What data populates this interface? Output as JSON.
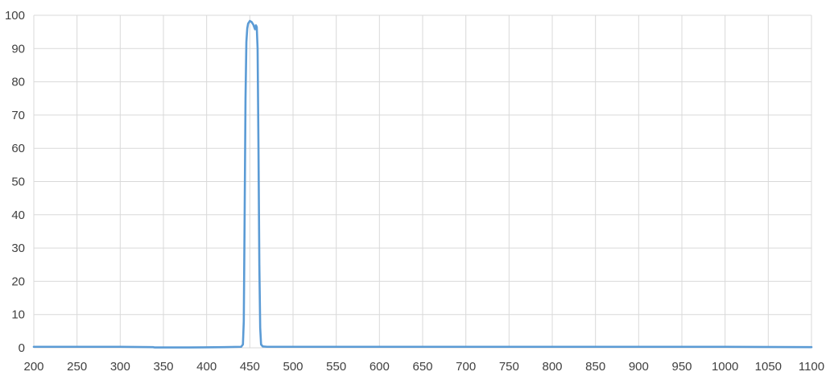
{
  "chart_data": {
    "type": "line",
    "title": "",
    "xlabel": "",
    "ylabel": "",
    "xlim": [
      200,
      1100
    ],
    "ylim": [
      0,
      100
    ],
    "x_ticks": [
      200,
      250,
      300,
      350,
      400,
      450,
      500,
      550,
      600,
      650,
      700,
      750,
      800,
      850,
      900,
      950,
      1000,
      1050,
      1100
    ],
    "y_ticks": [
      0,
      10,
      20,
      30,
      40,
      50,
      60,
      70,
      80,
      90,
      100
    ],
    "grid": true,
    "legend": "none",
    "series": [
      {
        "color": "#5b9bd5",
        "points": [
          [
            200,
            0.3
          ],
          [
            250,
            0.3
          ],
          [
            300,
            0.3
          ],
          [
            338,
            0.2
          ],
          [
            340,
            0.1
          ],
          [
            380,
            0.1
          ],
          [
            420,
            0.2
          ],
          [
            440,
            0.3
          ],
          [
            442,
            1.0
          ],
          [
            443,
            8
          ],
          [
            444,
            40
          ],
          [
            445,
            75
          ],
          [
            446,
            92
          ],
          [
            447,
            96
          ],
          [
            448,
            97.5
          ],
          [
            450,
            98.3
          ],
          [
            452,
            98.0
          ],
          [
            454,
            97.2
          ],
          [
            455,
            96.5
          ],
          [
            456,
            95.8
          ],
          [
            457,
            97.0
          ],
          [
            458,
            96.5
          ],
          [
            459,
            90
          ],
          [
            460,
            60
          ],
          [
            461,
            25
          ],
          [
            462,
            6
          ],
          [
            463,
            1.0
          ],
          [
            465,
            0.4
          ],
          [
            470,
            0.3
          ],
          [
            500,
            0.3
          ],
          [
            600,
            0.3
          ],
          [
            700,
            0.3
          ],
          [
            800,
            0.3
          ],
          [
            900,
            0.3
          ],
          [
            1000,
            0.3
          ],
          [
            1100,
            0.2
          ]
        ]
      }
    ]
  }
}
